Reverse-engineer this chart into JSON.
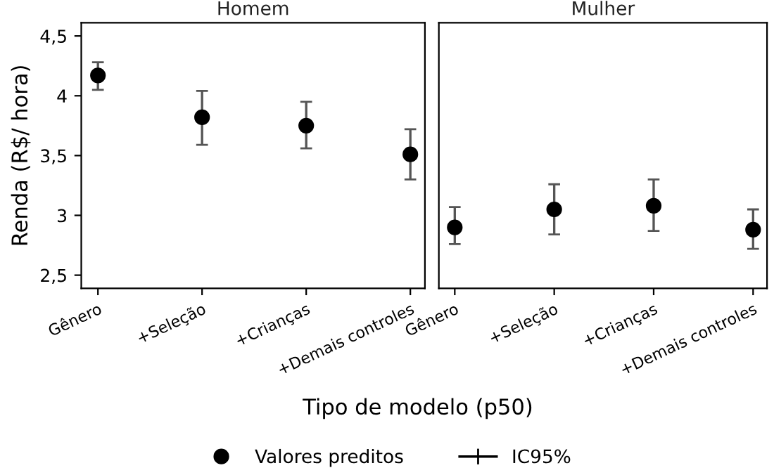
{
  "chart_data": [
    {
      "type": "scatter",
      "title": "Homem",
      "ylabel": "Renda (R$/ hora)",
      "xlabel": "Tipo de modelo (p50)",
      "categories": [
        "Gênero",
        "+Seleção",
        "+Crianças",
        "+Demais controles"
      ],
      "series": [
        {
          "name": "Valores preditos",
          "color": "#000000",
          "values": [
            4.17,
            3.82,
            3.75,
            3.51
          ],
          "errors": [
            [
              4.05,
              4.28
            ],
            [
              3.59,
              4.04
            ],
            [
              3.56,
              3.95
            ],
            [
              3.3,
              3.72
            ]
          ]
        }
      ],
      "ylim": [
        2.39,
        4.61
      ],
      "yticks": [
        {
          "value": 2.5,
          "label": "2,5"
        },
        3,
        {
          "value": 3.5,
          "label": "3,5"
        },
        4,
        {
          "value": 4.5,
          "label": "4,5"
        }
      ],
      "marker": "circle",
      "legend": "bottom",
      "grid": false,
      "annotations": [
        "IC95%"
      ]
    },
    {
      "type": "scatter",
      "title": "Mulher",
      "categories": [
        "Gênero",
        "+Seleção",
        "+Crianças",
        "+Demais controles"
      ],
      "series": [
        {
          "color": "#000000",
          "values": [
            2.9,
            3.05,
            3.08,
            2.88
          ],
          "errors": [
            [
              2.76,
              3.07
            ],
            [
              2.84,
              3.26
            ],
            [
              2.87,
              3.3
            ],
            [
              2.72,
              3.05
            ]
          ]
        }
      ],
      "ylim": [
        2.39,
        4.61
      ],
      "marker": "circle",
      "tick_labels": "x",
      "grid": false
    }
  ]
}
